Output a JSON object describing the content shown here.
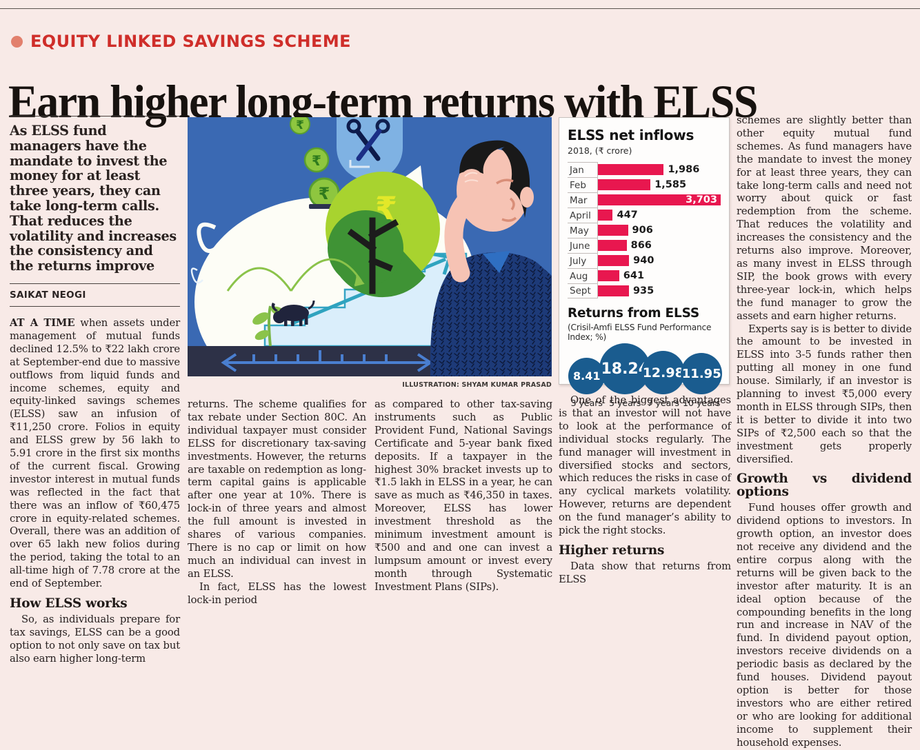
{
  "page": {
    "kicker": "EQUITY LINKED SAVINGS SCHEME",
    "headline": "Earn higher long-term returns with ELSS"
  },
  "lead": {
    "standfirst": "As ELSS fund managers have the mandate to invest the money for at least three years, they can take long-term calls. That reduces the volatility and increases the consistency and the returns improve",
    "byline": "SAIKAT NEOGI"
  },
  "article": {
    "col1": {
      "para1_lead": "AT A TIME",
      "para1_rest": " when assets under management of mutual funds declined 12.5% to ₹22 lakh crore at September-end due to massive outflows from liquid funds and income schemes, equity and equity-linked savings schemes (ELSS) saw an infusion of ₹11,250 crore. Folios in equity and ELSS grew by 56 lakh to 5.91 crore in the first six months of the current fiscal. Growing investor interest in mutual funds was reflected in the fact that there was an inflow of ₹60,475 crore in equity-related schemes. Overall, there was an addition of over 65 lakh new folios during the period, taking the total to an all-time high of 7.78 crore at the end of September.",
      "heading": "How ELSS works",
      "para2": "So, as individuals prepare for tax savings, ELSS can be a good option to not only save on tax but also earn higher long-term"
    },
    "col2": {
      "para1": "returns. The scheme qualifies for tax rebate under Section 80C. An individual taxpayer must consider ELSS for discretionary tax-saving investments. However, the returns are taxable on redemption as long-term capital gains is applicable after one year at 10%. There is lock-in of three years and almost the full amount is invested in shares of various companies. There is no cap or limit on how much an individual can invest in an ELSS.",
      "para2": "In fact, ELSS has the lowest lock-in period"
    },
    "col3": {
      "para1": "as compared to other tax-saving instruments such as Public Provident Fund, National Savings Certificate and 5-year bank fixed deposits. If a taxpayer in the highest 30% bracket invests up to ₹1.5 lakh in ELSS in a year, he can save as much as ₹46,350 in taxes. Moreover, ELSS has lower investment threshold as the minimum investment amount is ₹500 and and one can invest a lumpsum amount or invest every month through Systematic Investment Plans (SIPs)."
    },
    "col4": {
      "para1": "One of the biggest advantages is that an investor will not have to look at the performance of individual stocks regularly. The fund manager will investment in diversified stocks and sectors, which reduces the risks in case of any cyclical markets volatility. However, returns are dependent on the fund manager’s ability to pick the right stocks.",
      "heading": "Higher returns",
      "para2": "Data show that returns from ELSS"
    },
    "col5": {
      "para1": "schemes are slightly better than other equity mutual fund schemes. As fund managers have the mandate to invest the money for at least three years, they can take long-term calls and need not worry about quick or fast redemption from the scheme. That reduces the volatility and increases the consistency and the returns also improve. Moreover, as many invest in ELSS through SIP, the book grows with every three-year lock-in, which helps the fund manager to grow the assets and earn higher returns.",
      "para2": "Experts say is is better to divide the amount to be invested in ELSS into 3-5 funds rather then putting all money in one fund house. Similarly, if an investor is planning to invest ₹5,000 every month in ELSS through SIPs, then it is better to divide it into two SIPs of ₹2,500 each so that the investment gets properly diversified.",
      "heading": "Growth vs dividend options",
      "para3": "Fund houses offer growth and dividend options to investors. In growth option, an investor does not receive any dividend and the entire corpus along with the returns will be given back to the investor after maturity. It is an ideal option because of the compounding benefits in the long run and increase in NAV of the fund. In dividend payout option, investors receive dividends on a periodic basis as declared by the fund houses. Dividend payout option is better for those investors who are either retired or who are looking for additional income to supplement their household expenses."
    }
  },
  "illustration": {
    "credit": "ILLUSTRATION: SHYAM KUMAR PRASAD"
  },
  "colors": {
    "accent_red": "#cf2e2a",
    "bar_color": "#e8174f",
    "circle_color": "#1a5c8f",
    "page_bg": "#f8eae7"
  },
  "chart_data": {
    "type": "bar",
    "orientation": "horizontal",
    "title": "ELSS net inflows",
    "subtitle": "2018, (₹ crore)",
    "categories": [
      "Jan",
      "Feb",
      "Mar",
      "April",
      "May",
      "June",
      "July",
      "Aug",
      "Sept"
    ],
    "values": [
      1986,
      1585,
      3703,
      447,
      906,
      866,
      940,
      641,
      935
    ],
    "value_labels": [
      "1,986",
      "1,585",
      "3,703",
      "447",
      "906",
      "866",
      "940",
      "641",
      "935"
    ],
    "xlim": [
      0,
      3703
    ],
    "grid": false,
    "bar_color": "#e8174f",
    "returns": {
      "title": "Returns from ELSS",
      "subtitle": "(Crisil-Amfi ELSS Fund Performance Index; %)",
      "items": [
        {
          "label": "3 years",
          "value": 8.41,
          "display": "8.41"
        },
        {
          "label": "5 years",
          "value": 18.24,
          "display": "18.24"
        },
        {
          "label": "7 years",
          "value": 12.98,
          "display": "12.98"
        },
        {
          "label": "10 years",
          "value": 11.95,
          "display": "11.95"
        }
      ],
      "circle_color": "#1a5c8f"
    }
  }
}
